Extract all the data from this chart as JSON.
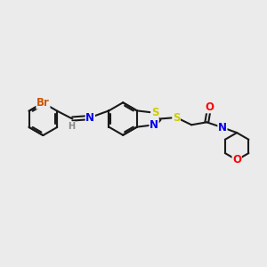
{
  "background_color": "#ebebeb",
  "bond_color": "#1a1a1a",
  "bond_width": 1.5,
  "atom_colors": {
    "Br": "#cc5500",
    "N": "#0000ee",
    "S": "#cccc00",
    "O": "#ff0000",
    "C": "#1a1a1a",
    "H": "#888888"
  },
  "font_size_atoms": 8.5,
  "font_size_small": 7.0,
  "xlim": [
    0,
    10
  ],
  "ylim": [
    0,
    10
  ]
}
